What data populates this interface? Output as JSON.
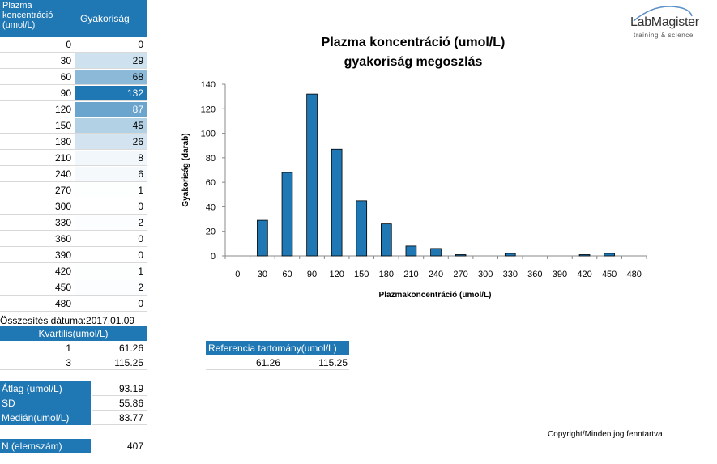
{
  "table": {
    "header_col1": "Plazma koncentráció (umol/L)",
    "header_col2": "Gyakoriság",
    "rows": [
      {
        "x": "0",
        "v": "0"
      },
      {
        "x": "30",
        "v": "29"
      },
      {
        "x": "60",
        "v": "68"
      },
      {
        "x": "90",
        "v": "132"
      },
      {
        "x": "120",
        "v": "87"
      },
      {
        "x": "150",
        "v": "45"
      },
      {
        "x": "180",
        "v": "26"
      },
      {
        "x": "210",
        "v": "8"
      },
      {
        "x": "240",
        "v": "6"
      },
      {
        "x": "270",
        "v": "1"
      },
      {
        "x": "300",
        "v": "0"
      },
      {
        "x": "330",
        "v": "2"
      },
      {
        "x": "360",
        "v": "0"
      },
      {
        "x": "390",
        "v": "0"
      },
      {
        "x": "420",
        "v": "1"
      },
      {
        "x": "450",
        "v": "2"
      },
      {
        "x": "480",
        "v": "0"
      }
    ]
  },
  "summary": {
    "date_label": "Összesítés dátuma:",
    "date_value": "2017.01.09",
    "kvartilis_header": "Kvartilis(umol/L)",
    "q1_label": "1",
    "q1_value": "61.26",
    "q3_label": "3",
    "q3_value": "115.25",
    "atlag_label": "Átlag (umol/L)",
    "atlag_value": "93.19",
    "sd_label": "SD",
    "sd_value": "55.86",
    "median_label": "Medián(umol/L)",
    "median_value": "83.77",
    "n_label": "N (elemszám)",
    "n_value": "407"
  },
  "reference": {
    "header": "Referencia tartomány(umol/L)",
    "low": "61.26",
    "high": "115.25"
  },
  "logo": {
    "name": "LabMagister",
    "tagline": "training & science"
  },
  "copyright": "Copyright/Minden jog fenntartva",
  "colors": {
    "header_blue": "#1f77b4",
    "bar_fill": "#1f77b4",
    "heat_max": "#1f77b4",
    "heat_min": "#ffffff"
  },
  "chart_data": {
    "type": "bar",
    "title_line1": "Plazma koncentráció (umol/L)",
    "title_line2": "gyakoriság megoszlás",
    "xlabel": "Plazmakoncentráció  (umol/L)",
    "ylabel": "Gyakoriság (darab)",
    "categories": [
      "0",
      "30",
      "60",
      "90",
      "120",
      "150",
      "180",
      "210",
      "240",
      "270",
      "300",
      "330",
      "360",
      "390",
      "420",
      "450",
      "480"
    ],
    "values": [
      0,
      29,
      68,
      132,
      87,
      45,
      26,
      8,
      6,
      1,
      0,
      2,
      0,
      0,
      1,
      2,
      0
    ],
    "ylim": [
      0,
      140
    ],
    "yticks": [
      0,
      20,
      40,
      60,
      80,
      100,
      120,
      140
    ],
    "grid": false,
    "legend": "none"
  }
}
